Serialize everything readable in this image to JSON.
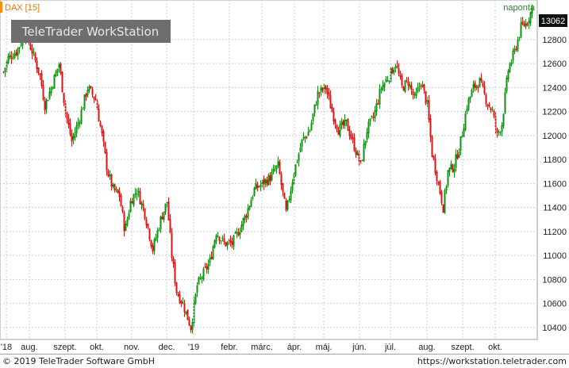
{
  "header": {
    "symbol_label": "DAX [15]",
    "interval_label": "naponta",
    "watermark": "TeleTrader WorkStation",
    "last_price": "13062"
  },
  "footer": {
    "copyright": "© 2019 TeleTrader Software GmbH",
    "url": "https://workstation.teletrader.com"
  },
  "colors": {
    "up": "#1a8a1a",
    "down": "#cc1a1a",
    "grid": "#c8d0d8",
    "accent": "#ff8c00"
  },
  "chart_data": {
    "type": "candlestick",
    "title": "DAX [15]",
    "period": "naponta",
    "ylim": [
      10300,
      13130
    ],
    "y_ticks": [
      10400,
      10600,
      10800,
      11000,
      11200,
      11400,
      11600,
      11800,
      12000,
      12200,
      12400,
      12600,
      12800,
      13062
    ],
    "x_ticks": [
      "'18",
      "aug.",
      "szept.",
      "okt.",
      "nov.",
      "dec.",
      "'19",
      "febr.",
      "márc.",
      "ápr.",
      "máj.",
      "jún.",
      "júl.",
      "aug.",
      "szept.",
      "okt."
    ],
    "grid": true,
    "last_value": 13062,
    "path": [
      [
        0,
        12450
      ],
      [
        10,
        12650
      ],
      [
        20,
        12700
      ],
      [
        32,
        12850
      ],
      [
        40,
        12700
      ],
      [
        50,
        12500
      ],
      [
        56,
        12250
      ],
      [
        64,
        12400
      ],
      [
        74,
        12600
      ],
      [
        82,
        12200
      ],
      [
        90,
        11950
      ],
      [
        100,
        12150
      ],
      [
        110,
        12400
      ],
      [
        120,
        12300
      ],
      [
        128,
        12000
      ],
      [
        135,
        11700
      ],
      [
        142,
        11550
      ],
      [
        150,
        11500
      ],
      [
        157,
        11200
      ],
      [
        164,
        11450
      ],
      [
        172,
        11550
      ],
      [
        182,
        11350
      ],
      [
        192,
        11050
      ],
      [
        202,
        11300
      ],
      [
        210,
        11450
      ],
      [
        216,
        11000
      ],
      [
        222,
        10700
      ],
      [
        230,
        10600
      ],
      [
        240,
        10400
      ],
      [
        248,
        10750
      ],
      [
        256,
        10850
      ],
      [
        264,
        10950
      ],
      [
        272,
        11200
      ],
      [
        282,
        11100
      ],
      [
        292,
        11100
      ],
      [
        300,
        11200
      ],
      [
        310,
        11350
      ],
      [
        320,
        11550
      ],
      [
        330,
        11600
      ],
      [
        340,
        11650
      ],
      [
        350,
        11750
      ],
      [
        360,
        11350
      ],
      [
        370,
        11700
      ],
      [
        380,
        11950
      ],
      [
        390,
        12050
      ],
      [
        400,
        12350
      ],
      [
        410,
        12400
      ],
      [
        418,
        12200
      ],
      [
        426,
        12050
      ],
      [
        436,
        12100
      ],
      [
        444,
        11950
      ],
      [
        454,
        11750
      ],
      [
        462,
        12050
      ],
      [
        470,
        12150
      ],
      [
        480,
        12400
      ],
      [
        490,
        12500
      ],
      [
        498,
        12600
      ],
      [
        506,
        12400
      ],
      [
        514,
        12450
      ],
      [
        522,
        12300
      ],
      [
        530,
        12450
      ],
      [
        538,
        12250
      ],
      [
        544,
        11850
      ],
      [
        552,
        11600
      ],
      [
        558,
        11400
      ],
      [
        564,
        11700
      ],
      [
        572,
        11750
      ],
      [
        580,
        11950
      ],
      [
        588,
        12250
      ],
      [
        596,
        12400
      ],
      [
        604,
        12450
      ],
      [
        612,
        12300
      ],
      [
        620,
        12200
      ],
      [
        626,
        12000
      ],
      [
        632,
        12100
      ],
      [
        640,
        12550
      ],
      [
        648,
        12700
      ],
      [
        656,
        12900
      ],
      [
        664,
        12950
      ],
      [
        670,
        13062
      ]
    ]
  }
}
